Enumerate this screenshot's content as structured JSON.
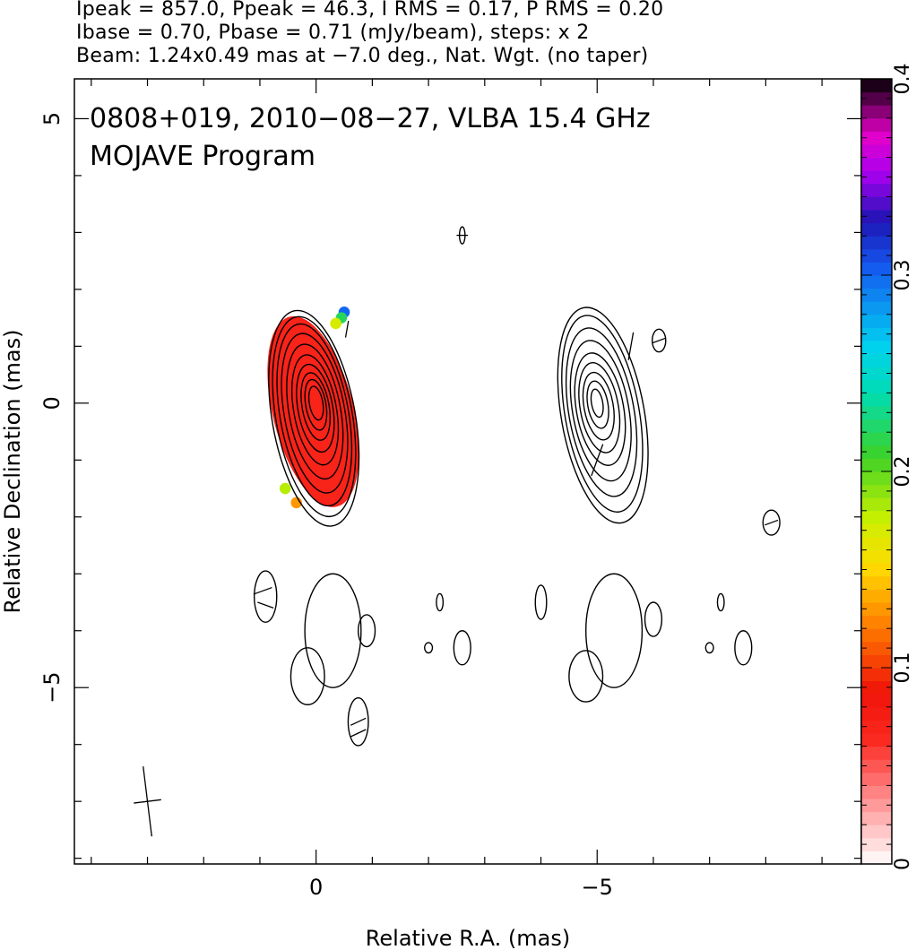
{
  "header": {
    "line1": "Ipeak = 857.0, Ppeak = 46.3, I RMS = 0.17, P RMS = 0.20",
    "line2": "Ibase = 0.70, Pbase = 0.71 (mJy/beam), steps: x 2",
    "line3": "Beam: 1.24x0.49 mas at −7.0 deg., Nat. Wgt. (no taper)"
  },
  "chart_data": {
    "type": "heatmap",
    "title": "0808+019, 2010−08−27, VLBA 15.4 GHz",
    "subtitle": "MOJAVE Program",
    "xlabel": "Relative R.A. (mas)",
    "ylabel": "Relative Declination (mas)",
    "xlim": [
      4.3,
      -9.7
    ],
    "ylim": [
      -8.1,
      5.7
    ],
    "x_ticks": [
      {
        "value": 0,
        "label": "0"
      },
      {
        "value": -5,
        "label": "−5"
      }
    ],
    "y_ticks": [
      {
        "value": 5,
        "label": "5"
      },
      {
        "value": 0,
        "label": "0"
      },
      {
        "value": -5,
        "label": "−5"
      }
    ],
    "colorbar": {
      "range": [
        0,
        0.4
      ],
      "ticks": [
        {
          "value": 0,
          "label": "0"
        },
        {
          "value": 0.1,
          "label": "0.1"
        },
        {
          "value": 0.2,
          "label": "0.2"
        },
        {
          "value": 0.3,
          "label": "0.3"
        },
        {
          "value": 0.4,
          "label": "0.4"
        }
      ]
    },
    "beam": {
      "major_mas": 1.24,
      "minor_mas": 0.49,
      "pa_deg": -7.0,
      "center": [
        3.0,
        -7.0
      ]
    },
    "panels": [
      {
        "name": "left",
        "center": [
          0,
          0
        ],
        "contours_major_mas": [
          0.3,
          0.45,
          0.6,
          0.78,
          0.98,
          1.2,
          1.42,
          1.62,
          1.78,
          1.92
        ],
        "contours_minor_mas": [
          0.12,
          0.18,
          0.24,
          0.31,
          0.38,
          0.46,
          0.54,
          0.61,
          0.68,
          0.74
        ],
        "pol_fraction_patch": {
          "center": [
            0.05,
            -0.15
          ],
          "dominant_value": 0.07,
          "edge_values": [
            {
              "x": -0.5,
              "y": 1.6,
              "v": 0.3
            },
            {
              "x": -0.45,
              "y": 1.5,
              "v": 0.22
            },
            {
              "x": -0.35,
              "y": 1.4,
              "v": 0.17
            },
            {
              "x": 0.55,
              "y": -1.5,
              "v": 0.18
            },
            {
              "x": 0.35,
              "y": -1.75,
              "v": 0.13
            }
          ]
        }
      },
      {
        "name": "right",
        "center": [
          -5,
          0
        ],
        "contours_major_mas": [
          0.25,
          0.42,
          0.6,
          0.8,
          1.0,
          1.25,
          1.5,
          1.75,
          1.92
        ],
        "contours_minor_mas": [
          0.1,
          0.18,
          0.26,
          0.34,
          0.42,
          0.5,
          0.58,
          0.66,
          0.74
        ]
      }
    ],
    "blobs": [
      {
        "x": 0.9,
        "y": -3.4,
        "rx": 0.2,
        "ry": 0.45
      },
      {
        "x": -0.3,
        "y": -4.0,
        "rx": 0.5,
        "ry": 1.0
      },
      {
        "x": 0.15,
        "y": -4.8,
        "rx": 0.3,
        "ry": 0.5
      },
      {
        "x": -0.9,
        "y": -4.0,
        "rx": 0.15,
        "ry": 0.28
      },
      {
        "x": -0.75,
        "y": -5.6,
        "rx": 0.18,
        "ry": 0.42
      },
      {
        "x": -2.2,
        "y": -3.5,
        "rx": 0.06,
        "ry": 0.15
      },
      {
        "x": -2.0,
        "y": -4.3,
        "rx": 0.07,
        "ry": 0.09
      },
      {
        "x": -2.6,
        "y": -4.3,
        "rx": 0.15,
        "ry": 0.3
      },
      {
        "x": -4.0,
        "y": -3.5,
        "rx": 0.1,
        "ry": 0.3
      },
      {
        "x": -5.3,
        "y": -4.0,
        "rx": 0.5,
        "ry": 1.0
      },
      {
        "x": -4.8,
        "y": -4.8,
        "rx": 0.3,
        "ry": 0.45
      },
      {
        "x": -6.0,
        "y": -3.8,
        "rx": 0.15,
        "ry": 0.3
      },
      {
        "x": -7.2,
        "y": -3.5,
        "rx": 0.06,
        "ry": 0.15
      },
      {
        "x": -7.0,
        "y": -4.3,
        "rx": 0.07,
        "ry": 0.09
      },
      {
        "x": -7.6,
        "y": -4.3,
        "rx": 0.15,
        "ry": 0.3
      },
      {
        "x": -8.1,
        "y": -2.1,
        "rx": 0.15,
        "ry": 0.22
      },
      {
        "x": -6.1,
        "y": 1.1,
        "rx": 0.12,
        "ry": 0.2
      },
      {
        "x": -2.6,
        "y": 2.95,
        "rx": 0.05,
        "ry": 0.15
      }
    ],
    "evpa_ticks": [
      {
        "x": 0.95,
        "y": -3.3,
        "angle_deg": 20,
        "len": 0.35
      },
      {
        "x": 0.9,
        "y": -3.55,
        "angle_deg": -20,
        "len": 0.3
      },
      {
        "x": -0.75,
        "y": -5.6,
        "angle_deg": 25,
        "len": 0.3
      },
      {
        "x": -0.75,
        "y": -5.8,
        "angle_deg": 25,
        "len": 0.3
      },
      {
        "x": -6.1,
        "y": 1.1,
        "angle_deg": 20,
        "len": 0.25
      },
      {
        "x": -8.1,
        "y": -2.1,
        "angle_deg": 20,
        "len": 0.25
      },
      {
        "x": -2.6,
        "y": 2.95,
        "angle_deg": 0,
        "len": 0.2
      },
      {
        "x": -0.55,
        "y": 1.3,
        "angle_deg": 80,
        "len": 0.3
      },
      {
        "x": -5.6,
        "y": 1.0,
        "angle_deg": 80,
        "len": 0.5
      },
      {
        "x": -5.0,
        "y": -1.0,
        "angle_deg": 70,
        "len": 0.6
      }
    ]
  }
}
